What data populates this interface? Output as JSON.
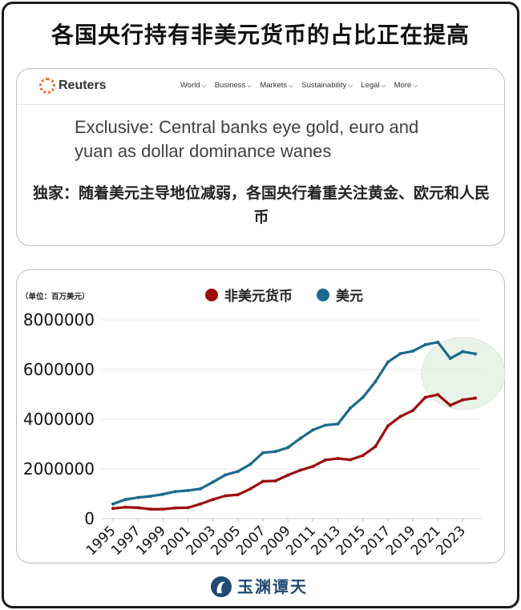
{
  "title": "各国央行持有非美元货币的占比正在提高",
  "news": {
    "logo_text": "Reuters",
    "nav": [
      "World",
      "Business",
      "Markets",
      "Sustainability",
      "Legal",
      "More"
    ],
    "headline": "Exclusive: Central banks eye gold, euro and yuan as dollar dominance wanes",
    "headline_zh": "独家：随着美元主导地位减弱，各国央行着重关注黄金、欧元和人民币"
  },
  "footer": {
    "logo_text": "玉渊谭天"
  },
  "chart_data": {
    "type": "line",
    "unit_label": "（单位：百万美元）",
    "legend_position": "top",
    "grid": true,
    "x": [
      1995,
      1996,
      1997,
      1998,
      1999,
      2000,
      2001,
      2002,
      2003,
      2004,
      2005,
      2006,
      2007,
      2008,
      2009,
      2010,
      2011,
      2012,
      2013,
      2014,
      2015,
      2016,
      2017,
      2018,
      2019,
      2020,
      2021,
      2022,
      2023,
      2024
    ],
    "xticks": [
      "1995",
      "1997",
      "1999",
      "2001",
      "2003",
      "2005",
      "2007",
      "2009",
      "2011",
      "2013",
      "2015",
      "2017",
      "2019",
      "2021",
      "2023"
    ],
    "yticks": [
      "0",
      "2000000",
      "4000000",
      "6000000",
      "8000000"
    ],
    "ylim": [
      0,
      8000000
    ],
    "series": [
      {
        "name": "非美元货币",
        "color": "#9b0d0d",
        "values": [
          410000,
          460000,
          440000,
          380000,
          380000,
          430000,
          440000,
          590000,
          770000,
          920000,
          960000,
          1200000,
          1500000,
          1520000,
          1750000,
          1950000,
          2100000,
          2360000,
          2420000,
          2370000,
          2540000,
          2900000,
          3730000,
          4110000,
          4350000,
          4880000,
          4990000,
          4560000,
          4780000,
          4850000
        ]
      },
      {
        "name": "美元",
        "color": "#1b6a8c",
        "values": [
          590000,
          770000,
          850000,
          900000,
          980000,
          1090000,
          1130000,
          1200000,
          1470000,
          1760000,
          1900000,
          2190000,
          2650000,
          2700000,
          2860000,
          3230000,
          3570000,
          3760000,
          3810000,
          4450000,
          4880000,
          5510000,
          6300000,
          6640000,
          6740000,
          7000000,
          7100000,
          6450000,
          6720000,
          6630000
        ]
      }
    ],
    "highlight_color": "#e3efe1"
  }
}
